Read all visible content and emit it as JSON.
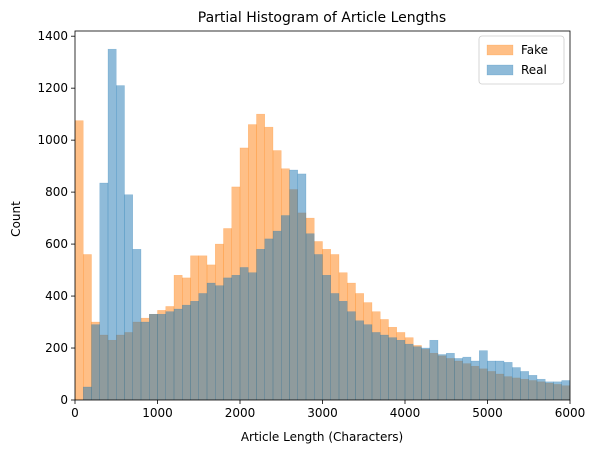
{
  "chart_data": {
    "type": "bar",
    "title": "Partial Histogram of Article Lengths",
    "xlabel": "Article Length (Characters)",
    "ylabel": "Count",
    "xlim": [
      0,
      6000
    ],
    "ylim": [
      0,
      1420
    ],
    "xticks": [
      0,
      1000,
      2000,
      3000,
      4000,
      5000,
      6000
    ],
    "yticks": [
      0,
      200,
      400,
      600,
      800,
      1000,
      1200,
      1400
    ],
    "grid": false,
    "legend_position": "top-right",
    "bin_width": 100,
    "bin_start": 0,
    "series": [
      {
        "name": "Fake",
        "color": "#ff7f0e",
        "values": [
          1075,
          560,
          300,
          250,
          230,
          250,
          260,
          300,
          315,
          330,
          345,
          360,
          480,
          470,
          555,
          555,
          520,
          600,
          660,
          820,
          970,
          1060,
          1100,
          1050,
          960,
          890,
          810,
          720,
          700,
          610,
          580,
          560,
          490,
          450,
          410,
          375,
          340,
          310,
          280,
          260,
          240,
          210,
          195,
          180,
          170,
          160,
          150,
          140,
          130,
          120,
          110,
          100,
          90,
          85,
          80,
          75,
          70,
          65,
          60,
          55
        ]
      },
      {
        "name": "Real",
        "color": "#1f77b4",
        "values": [
          0,
          50,
          290,
          835,
          1350,
          1210,
          790,
          580,
          300,
          330,
          330,
          340,
          350,
          365,
          380,
          410,
          450,
          440,
          470,
          480,
          510,
          490,
          580,
          620,
          650,
          710,
          885,
          870,
          640,
          560,
          480,
          410,
          380,
          340,
          305,
          290,
          260,
          250,
          240,
          230,
          215,
          205,
          200,
          230,
          175,
          180,
          160,
          165,
          150,
          190,
          150,
          150,
          145,
          125,
          110,
          95,
          80,
          70,
          70,
          75
        ]
      }
    ]
  }
}
